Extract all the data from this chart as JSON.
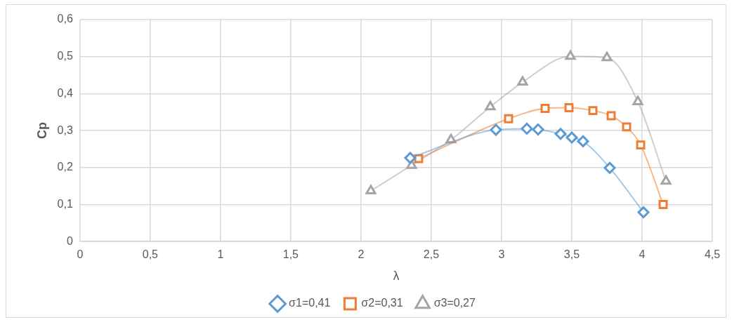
{
  "chart_data": {
    "type": "line",
    "xlabel": "λ",
    "ylabel": "Cp",
    "xlim": [
      0,
      4.5
    ],
    "xticks": [
      0,
      {
        "value": 0.5,
        "label": "0,5"
      },
      1,
      {
        "value": 1.5,
        "label": "1,5"
      },
      2,
      {
        "value": 2.5,
        "label": "2,5"
      },
      3,
      {
        "value": 3.5,
        "label": "3,5"
      },
      4,
      {
        "value": 4.5,
        "label": "4,5"
      }
    ],
    "ylim": [
      0,
      0.6
    ],
    "yticks": [
      0,
      {
        "value": 0.1,
        "label": "0,1"
      },
      {
        "value": 0.2,
        "label": "0,2"
      },
      {
        "value": 0.3,
        "label": "0,3"
      },
      {
        "value": 0.4,
        "label": "0,4"
      },
      {
        "value": 0.5,
        "label": "0,5"
      },
      {
        "value": 0.6,
        "label": "0,6"
      }
    ],
    "grid": true,
    "legend": "bottom",
    "series": [
      {
        "name": "σ1=0,41",
        "color": "#5b9bd5",
        "marker": "diamond",
        "x": [
          2.35,
          2.96,
          3.18,
          3.26,
          3.42,
          3.5,
          3.58,
          3.77,
          4.01
        ],
        "values": [
          0.226,
          0.302,
          0.305,
          0.303,
          0.291,
          0.281,
          0.271,
          0.199,
          0.079
        ]
      },
      {
        "name": "σ2=0,31",
        "color": "#ed7d31",
        "marker": "square",
        "x": [
          2.41,
          3.05,
          3.31,
          3.48,
          3.65,
          3.78,
          3.89,
          3.99,
          4.15
        ],
        "values": [
          0.224,
          0.332,
          0.36,
          0.362,
          0.354,
          0.34,
          0.31,
          0.261,
          0.1
        ]
      },
      {
        "name": "σ3=0,27",
        "color": "#a5a5a5",
        "marker": "triangle",
        "x": [
          2.07,
          2.36,
          2.64,
          2.92,
          3.15,
          3.49,
          3.75,
          3.97,
          4.17
        ],
        "values": [
          0.137,
          0.206,
          0.275,
          0.364,
          0.431,
          0.501,
          0.497,
          0.378,
          0.163
        ]
      }
    ]
  }
}
